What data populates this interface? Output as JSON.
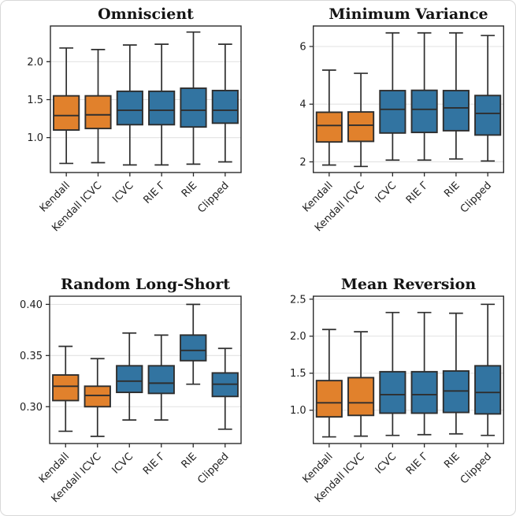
{
  "palette": {
    "orange": "#e1812c",
    "blue": "#3274a1",
    "box_edge": "#2e2e2e",
    "median_line": "#2e2e2e",
    "grid": "#e2e2e2",
    "spine": "#2a2a2a",
    "tick_text": "#1f1f1f",
    "title_text": "#141414",
    "card_border": "#d8d8d8",
    "background": "#ffffff"
  },
  "categories": [
    "Kendall",
    "Kendall ICVC",
    "ICVC",
    "RIE Γ",
    "RIE",
    "Clipped"
  ],
  "category_colors": [
    "#e1812c",
    "#e1812c",
    "#3274a1",
    "#3274a1",
    "#3274a1",
    "#3274a1"
  ],
  "chart_data": [
    {
      "type": "box",
      "title": "Omniscient",
      "grid": true,
      "categories": [
        "Kendall",
        "Kendall ICVC",
        "ICVC",
        "RIE Γ",
        "RIE",
        "Clipped"
      ],
      "ylim": [
        0.54,
        2.47
      ],
      "yticks": [
        1.0,
        1.5,
        2.0
      ],
      "ytick_labels": [
        "1.0",
        "1.5",
        "2.0"
      ],
      "series": [
        {
          "name": "Kendall",
          "color": "#e1812c",
          "whisker_low": 0.66,
          "q1": 1.1,
          "median": 1.29,
          "q3": 1.55,
          "whisker_high": 2.18
        },
        {
          "name": "Kendall ICVC",
          "color": "#e1812c",
          "whisker_low": 0.67,
          "q1": 1.12,
          "median": 1.3,
          "q3": 1.55,
          "whisker_high": 2.16
        },
        {
          "name": "ICVC",
          "color": "#3274a1",
          "whisker_low": 0.64,
          "q1": 1.17,
          "median": 1.36,
          "q3": 1.61,
          "whisker_high": 2.22
        },
        {
          "name": "RIE Γ",
          "color": "#3274a1",
          "whisker_low": 0.64,
          "q1": 1.17,
          "median": 1.36,
          "q3": 1.61,
          "whisker_high": 2.23
        },
        {
          "name": "RIE",
          "color": "#3274a1",
          "whisker_low": 0.65,
          "q1": 1.14,
          "median": 1.36,
          "q3": 1.65,
          "whisker_high": 2.39
        },
        {
          "name": "Clipped",
          "color": "#3274a1",
          "whisker_low": 0.68,
          "q1": 1.19,
          "median": 1.36,
          "q3": 1.62,
          "whisker_high": 2.23
        }
      ]
    },
    {
      "type": "box",
      "title": "Minimum Variance",
      "grid": true,
      "categories": [
        "Kendall",
        "Kendall ICVC",
        "ICVC",
        "RIE Γ",
        "RIE",
        "Clipped"
      ],
      "ylim": [
        1.63,
        6.71
      ],
      "yticks": [
        2,
        4,
        6
      ],
      "ytick_labels": [
        "2",
        "4",
        "6"
      ],
      "series": [
        {
          "name": "Kendall",
          "color": "#e1812c",
          "whisker_low": 1.89,
          "q1": 2.69,
          "median": 3.26,
          "q3": 3.72,
          "whisker_high": 5.18
        },
        {
          "name": "Kendall ICVC",
          "color": "#e1812c",
          "whisker_low": 1.84,
          "q1": 2.71,
          "median": 3.27,
          "q3": 3.73,
          "whisker_high": 5.07
        },
        {
          "name": "ICVC",
          "color": "#3274a1",
          "whisker_low": 2.06,
          "q1": 3.0,
          "median": 3.82,
          "q3": 4.47,
          "whisker_high": 6.47
        },
        {
          "name": "RIE Γ",
          "color": "#3274a1",
          "whisker_low": 2.06,
          "q1": 3.02,
          "median": 3.82,
          "q3": 4.48,
          "whisker_high": 6.47
        },
        {
          "name": "RIE",
          "color": "#3274a1",
          "whisker_low": 2.1,
          "q1": 3.08,
          "median": 3.87,
          "q3": 4.47,
          "whisker_high": 6.47
        },
        {
          "name": "Clipped",
          "color": "#3274a1",
          "whisker_low": 2.03,
          "q1": 2.93,
          "median": 3.68,
          "q3": 4.3,
          "whisker_high": 6.38
        }
      ]
    },
    {
      "type": "box",
      "title": "Random Long-Short",
      "grid": true,
      "categories": [
        "Kendall",
        "Kendall ICVC",
        "ICVC",
        "RIE Γ",
        "RIE",
        "Clipped"
      ],
      "ylim": [
        0.264,
        0.408
      ],
      "yticks": [
        0.3,
        0.35,
        0.4
      ],
      "ytick_labels": [
        "0.30",
        "0.35",
        "0.40"
      ],
      "series": [
        {
          "name": "Kendall",
          "color": "#e1812c",
          "whisker_low": 0.276,
          "q1": 0.306,
          "median": 0.32,
          "q3": 0.331,
          "whisker_high": 0.359
        },
        {
          "name": "Kendall ICVC",
          "color": "#e1812c",
          "whisker_low": 0.271,
          "q1": 0.3,
          "median": 0.311,
          "q3": 0.32,
          "whisker_high": 0.347
        },
        {
          "name": "ICVC",
          "color": "#3274a1",
          "whisker_low": 0.287,
          "q1": 0.314,
          "median": 0.325,
          "q3": 0.34,
          "whisker_high": 0.372
        },
        {
          "name": "RIE Γ",
          "color": "#3274a1",
          "whisker_low": 0.287,
          "q1": 0.313,
          "median": 0.323,
          "q3": 0.34,
          "whisker_high": 0.37
        },
        {
          "name": "RIE",
          "color": "#3274a1",
          "whisker_low": 0.322,
          "q1": 0.345,
          "median": 0.355,
          "q3": 0.37,
          "whisker_high": 0.4
        },
        {
          "name": "Clipped",
          "color": "#3274a1",
          "whisker_low": 0.278,
          "q1": 0.31,
          "median": 0.322,
          "q3": 0.333,
          "whisker_high": 0.357
        }
      ]
    },
    {
      "type": "box",
      "title": "Mean Reversion",
      "grid": true,
      "categories": [
        "Kendall",
        "Kendall ICVC",
        "ICVC",
        "RIE Γ",
        "RIE",
        "Clipped"
      ],
      "ylim": [
        0.55,
        2.54
      ],
      "yticks": [
        1.0,
        1.5,
        2.0,
        2.5
      ],
      "ytick_labels": [
        "1.0",
        "1.5",
        "2.0",
        "2.5"
      ],
      "series": [
        {
          "name": "Kendall",
          "color": "#e1812c",
          "whisker_low": 0.64,
          "q1": 0.91,
          "median": 1.1,
          "q3": 1.4,
          "whisker_high": 2.09
        },
        {
          "name": "Kendall ICVC",
          "color": "#e1812c",
          "whisker_low": 0.65,
          "q1": 0.93,
          "median": 1.1,
          "q3": 1.44,
          "whisker_high": 2.06
        },
        {
          "name": "ICVC",
          "color": "#3274a1",
          "whisker_low": 0.66,
          "q1": 0.96,
          "median": 1.21,
          "q3": 1.52,
          "whisker_high": 2.32
        },
        {
          "name": "RIE Γ",
          "color": "#3274a1",
          "whisker_low": 0.67,
          "q1": 0.96,
          "median": 1.21,
          "q3": 1.52,
          "whisker_high": 2.32
        },
        {
          "name": "RIE",
          "color": "#3274a1",
          "whisker_low": 0.68,
          "q1": 0.97,
          "median": 1.26,
          "q3": 1.53,
          "whisker_high": 2.31
        },
        {
          "name": "Clipped",
          "color": "#3274a1",
          "whisker_low": 0.66,
          "q1": 0.95,
          "median": 1.24,
          "q3": 1.6,
          "whisker_high": 2.43
        }
      ]
    }
  ]
}
